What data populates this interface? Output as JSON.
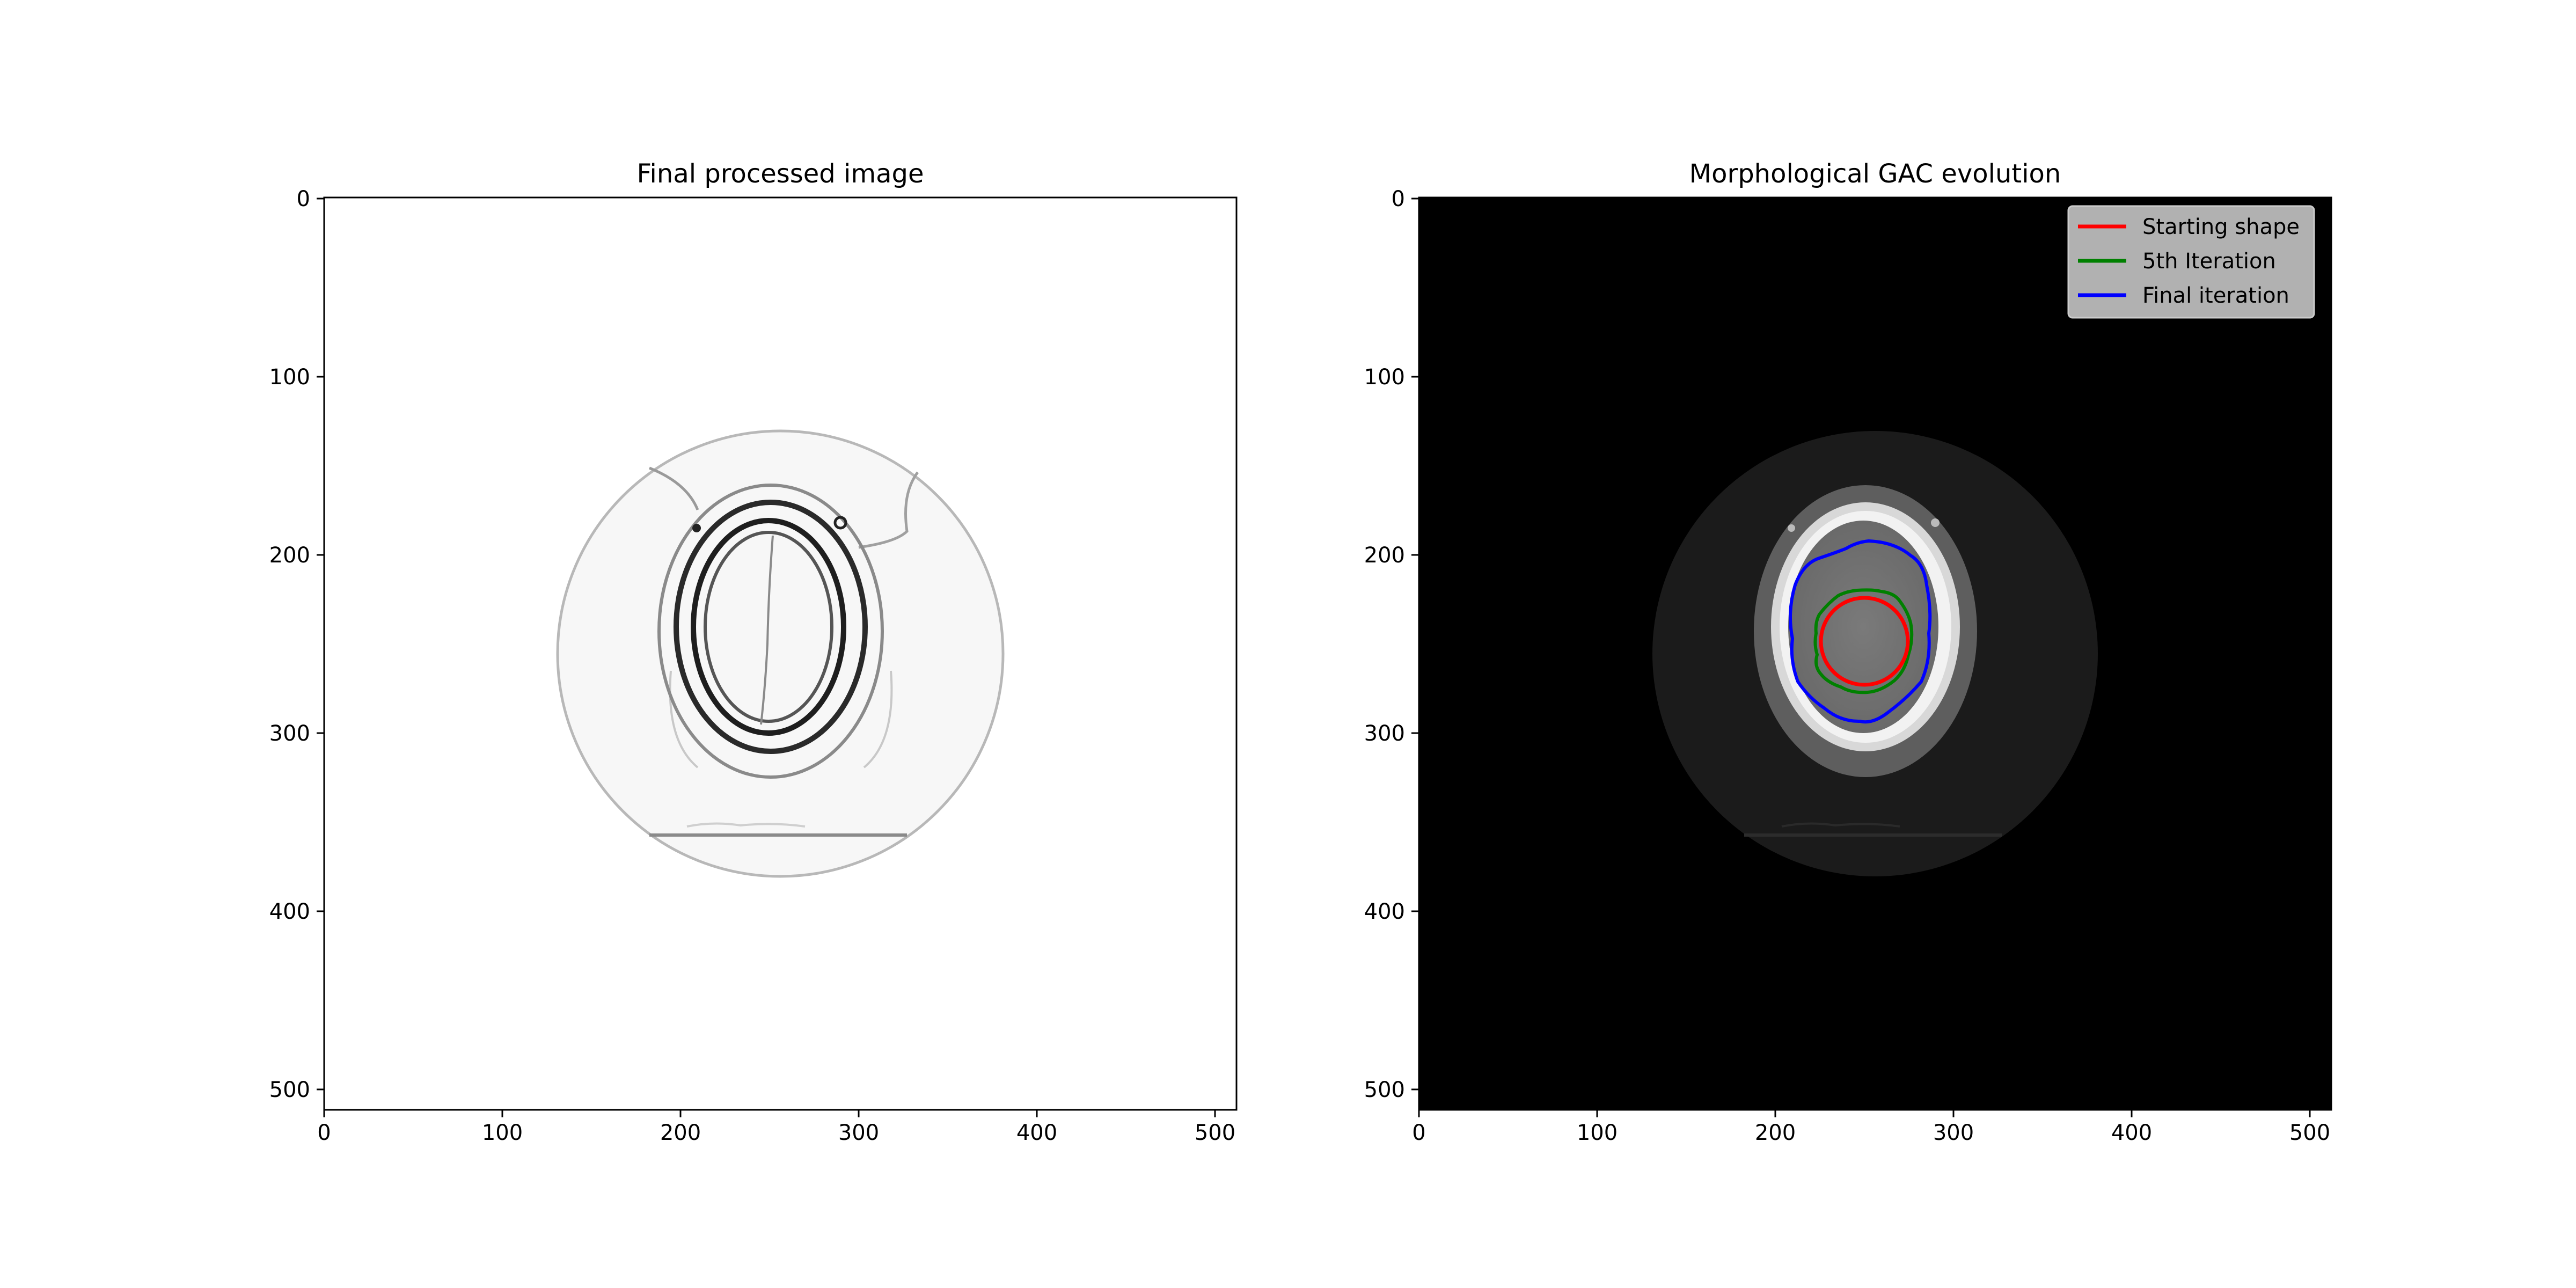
{
  "figure": {
    "panels": [
      {
        "title": "Final processed image",
        "x_ticks": [
          "0",
          "100",
          "200",
          "300",
          "400",
          "500"
        ],
        "y_ticks": [
          "0",
          "100",
          "200",
          "300",
          "400",
          "500"
        ]
      },
      {
        "title": "Morphological GAC evolution",
        "x_ticks": [
          "0",
          "100",
          "200",
          "300",
          "400",
          "500"
        ],
        "y_ticks": [
          "0",
          "100",
          "200",
          "300",
          "400",
          "500"
        ],
        "legend": [
          {
            "label": "Starting shape",
            "color": "#ff0000"
          },
          {
            "label": "5th Iteration",
            "color": "#008000"
          },
          {
            "label": "Final iteration",
            "color": "#0000ff"
          }
        ]
      }
    ]
  }
}
